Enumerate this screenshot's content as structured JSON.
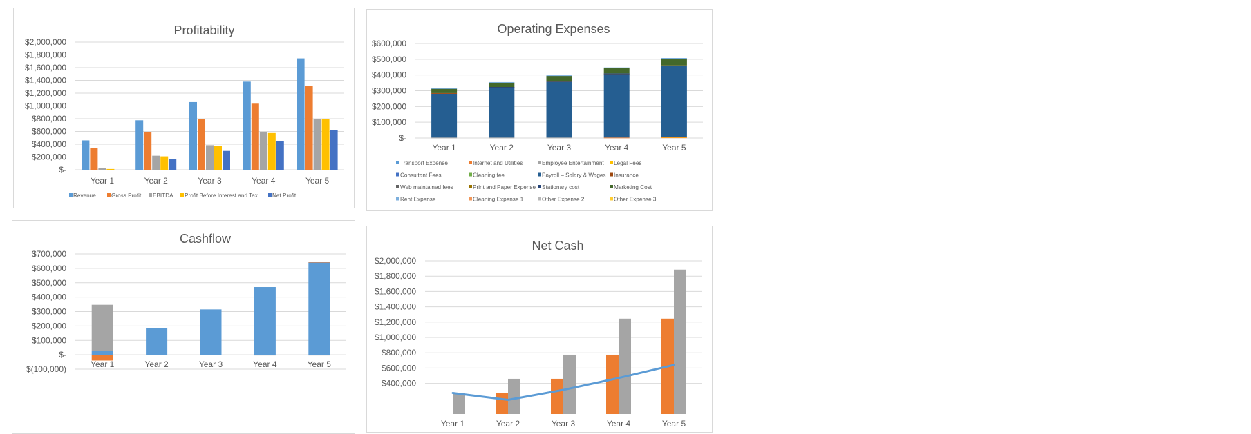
{
  "chart_data": [
    {
      "id": "profitability",
      "type": "bar",
      "title": "Profitability",
      "categories": [
        "Year 1",
        "Year 2",
        "Year 3",
        "Year 4",
        "Year 5"
      ],
      "yticks": [
        "$-",
        "$200,000",
        "$400,000",
        "$600,000",
        "$800,000",
        "$1,000,000",
        "$1,200,000",
        "$1,400,000",
        "$1,600,000",
        "$1,800,000",
        "$2,000,000"
      ],
      "ylim": [
        0,
        2000000
      ],
      "grid": true,
      "legend_position": "bottom",
      "series": [
        {
          "name": "Revenue",
          "color": "#5b9bd5",
          "values": [
            460000,
            775000,
            1060000,
            1380000,
            1745000
          ]
        },
        {
          "name": "Gross Profit",
          "color": "#ed7d31",
          "values": [
            340000,
            585000,
            795000,
            1035000,
            1315000
          ]
        },
        {
          "name": "EBITDA",
          "color": "#a5a5a5",
          "values": [
            30000,
            220000,
            385000,
            585000,
            800000
          ]
        },
        {
          "name": "Profit Before Interest and Tax",
          "color": "#ffc000",
          "values": [
            12000,
            210000,
            378000,
            575000,
            793000
          ]
        },
        {
          "name": "Net Profit",
          "color": "#4472c4",
          "values": [
            0,
            165000,
            295000,
            452000,
            620000
          ]
        }
      ]
    },
    {
      "id": "operating-expenses",
      "type": "bar",
      "stacked": true,
      "title": "Operating Expenses",
      "categories": [
        "Year 1",
        "Year 2",
        "Year 3",
        "Year 4",
        "Year 5"
      ],
      "yticks": [
        "$-",
        "$100,000",
        "$200,000",
        "$300,000",
        "$400,000",
        "$500,000",
        "$600,000"
      ],
      "ylim": [
        0,
        600000
      ],
      "grid": true,
      "legend_position": "bottom",
      "series": [
        {
          "name": "Transport Expense",
          "color": "#5b9bd5",
          "values": [
            0,
            0,
            0,
            0,
            0
          ]
        },
        {
          "name": "Internet and Utilities",
          "color": "#ed7d31",
          "values": [
            0,
            0,
            0,
            3000,
            4000
          ]
        },
        {
          "name": "Employee Entertainment",
          "color": "#a5a5a5",
          "values": [
            3000,
            3000,
            3000,
            0,
            0
          ]
        },
        {
          "name": "Legal Fees",
          "color": "#ffc000",
          "values": [
            0,
            0,
            0,
            0,
            3000
          ]
        },
        {
          "name": "Consultant Fees",
          "color": "#4472c4",
          "values": [
            0,
            0,
            0,
            0,
            0
          ]
        },
        {
          "name": "Cleaning fee",
          "color": "#70ad47",
          "values": [
            0,
            0,
            0,
            0,
            0
          ]
        },
        {
          "name": "Payroll – Salary & Wages",
          "color": "#255e91",
          "values": [
            278000,
            318000,
            358000,
            405000,
            450000
          ]
        },
        {
          "name": "Insurance",
          "color": "#9e480e",
          "values": [
            4000,
            2000,
            1000,
            1000,
            4000
          ]
        },
        {
          "name": "Web maintained fees",
          "color": "#636363",
          "values": [
            0,
            0,
            0,
            0,
            0
          ]
        },
        {
          "name": "Print and Paper Expense",
          "color": "#997300",
          "values": [
            0,
            0,
            0,
            0,
            0
          ]
        },
        {
          "name": "Stationary cost",
          "color": "#264478",
          "values": [
            0,
            1000,
            0,
            1000,
            0
          ]
        },
        {
          "name": "Marketing Cost",
          "color": "#43682b",
          "values": [
            28000,
            27000,
            33000,
            35000,
            40000
          ]
        },
        {
          "name": "Rent Expense",
          "color": "#7cafdd",
          "values": [
            3000,
            4000,
            3000,
            3000,
            7000
          ]
        },
        {
          "name": "Cleaning Expense 1",
          "color": "#f1975a",
          "values": [
            0,
            0,
            0,
            0,
            0
          ]
        },
        {
          "name": "Other Expense 2",
          "color": "#b7b7b7",
          "values": [
            0,
            0,
            0,
            0,
            0
          ]
        },
        {
          "name": "Other Expense 3",
          "color": "#ffcd33",
          "values": [
            0,
            0,
            0,
            0,
            0
          ]
        }
      ]
    },
    {
      "id": "cashflow",
      "type": "bar",
      "stacked": true,
      "title": "Cashflow",
      "categories": [
        "Year 1",
        "Year 2",
        "Year 3",
        "Year 4",
        "Year 5"
      ],
      "yticks": [
        "$(100,000)",
        "$-",
        "$100,000",
        "$200,000",
        "$300,000",
        "$400,000",
        "$500,000",
        "$600,000",
        "$700,000"
      ],
      "ylim": [
        -100000,
        700000
      ],
      "grid": true,
      "series": [
        {
          "color": "#5b9bd5",
          "values": [
            25000,
            185000,
            315000,
            470000,
            640000
          ]
        },
        {
          "color": "#ed7d31",
          "values": [
            -40000,
            0,
            0,
            0,
            5000
          ]
        },
        {
          "color": "#a5a5a5",
          "values": [
            322000,
            0,
            0,
            -4000,
            -4000
          ]
        }
      ]
    },
    {
      "id": "net-cash",
      "type": "bar+line",
      "title": "Net Cash",
      "categories": [
        "Year 1",
        "Year 2",
        "Year 3",
        "Year 4",
        "Year 5"
      ],
      "yticks": [
        "$400,000",
        "$600,000",
        "$800,000",
        "$1,000,000",
        "$1,200,000",
        "$1,400,000",
        "$1,600,000",
        "$1,800,000",
        "$2,000,000"
      ],
      "ylim": [
        0,
        2000000
      ],
      "grid": true,
      "series": [
        {
          "type": "bar",
          "color": "#ed7d31",
          "values": [
            0,
            275000,
            460000,
            775000,
            1245000
          ]
        },
        {
          "type": "bar",
          "color": "#a5a5a5",
          "values": [
            275000,
            460000,
            775000,
            1245000,
            1885000
          ]
        },
        {
          "type": "line",
          "color": "#5b9bd5",
          "values": [
            275000,
            185000,
            315000,
            470000,
            640000
          ]
        }
      ]
    }
  ]
}
